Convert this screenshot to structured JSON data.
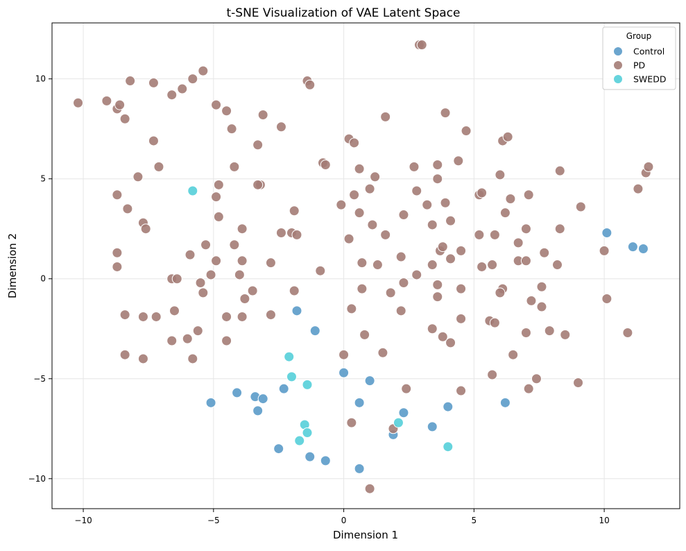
{
  "chart_data": {
    "type": "scatter",
    "title": "t-SNE Visualization of VAE Latent Space",
    "xlabel": "Dimension 1",
    "ylabel": "Dimension 2",
    "xlim": [
      -11.2,
      12.9
    ],
    "ylim": [
      -11.5,
      12.8
    ],
    "xticks": [
      -10,
      -5,
      0,
      5,
      10
    ],
    "yticks": [
      -10,
      -5,
      0,
      5,
      10
    ],
    "xtick_labels": [
      "−10",
      "−5",
      "0",
      "5",
      "10"
    ],
    "ytick_labels": [
      "−10",
      "−5",
      "0",
      "5",
      "10"
    ],
    "grid": true,
    "legend": {
      "title": "Group",
      "placement": "top-right"
    },
    "series": [
      {
        "name": "Control",
        "color": "#5b9bc9",
        "points": [
          [
            -5.1,
            -6.2
          ],
          [
            -4.1,
            -5.7
          ],
          [
            -3.4,
            -5.9
          ],
          [
            -3.3,
            -6.6
          ],
          [
            -3.1,
            -6.0
          ],
          [
            -2.5,
            -8.5
          ],
          [
            -2.3,
            -5.5
          ],
          [
            -1.8,
            -1.6
          ],
          [
            -1.3,
            -8.9
          ],
          [
            -1.1,
            -2.6
          ],
          [
            -0.7,
            -9.1
          ],
          [
            0.0,
            -4.7
          ],
          [
            0.6,
            -6.2
          ],
          [
            0.6,
            -9.5
          ],
          [
            1.0,
            -5.1
          ],
          [
            1.9,
            -7.8
          ],
          [
            2.3,
            -6.7
          ],
          [
            3.4,
            -7.4
          ],
          [
            4.0,
            -6.4
          ],
          [
            6.2,
            -6.2
          ],
          [
            10.1,
            2.3
          ],
          [
            11.1,
            1.6
          ],
          [
            11.5,
            1.5
          ]
        ]
      },
      {
        "name": "PD",
        "color": "#a47c75",
        "points": [
          [
            -10.2,
            8.8
          ],
          [
            -9.1,
            8.9
          ],
          [
            -8.7,
            8.5
          ],
          [
            -8.6,
            8.7
          ],
          [
            -8.4,
            8.0
          ],
          [
            -8.2,
            9.9
          ],
          [
            -7.3,
            9.8
          ],
          [
            -6.6,
            9.2
          ],
          [
            -6.2,
            9.5
          ],
          [
            -5.8,
            10.0
          ],
          [
            -5.4,
            10.4
          ],
          [
            -1.4,
            9.9
          ],
          [
            -1.3,
            9.7
          ],
          [
            -4.9,
            8.7
          ],
          [
            -4.5,
            8.4
          ],
          [
            -3.1,
            8.2
          ],
          [
            -4.3,
            7.5
          ],
          [
            -2.4,
            7.6
          ],
          [
            -7.3,
            6.9
          ],
          [
            -3.3,
            6.7
          ],
          [
            -7.1,
            5.6
          ],
          [
            -7.9,
            5.1
          ],
          [
            -4.2,
            5.6
          ],
          [
            -4.8,
            4.7
          ],
          [
            -3.2,
            4.7
          ],
          [
            -3.3,
            4.7
          ],
          [
            -8.7,
            4.2
          ],
          [
            -8.3,
            3.5
          ],
          [
            -4.9,
            4.1
          ],
          [
            -4.8,
            3.1
          ],
          [
            -7.7,
            2.8
          ],
          [
            -7.6,
            2.5
          ],
          [
            -3.9,
            2.5
          ],
          [
            -1.9,
            3.4
          ],
          [
            -2.4,
            2.3
          ],
          [
            -2.0,
            2.3
          ],
          [
            -1.8,
            2.2
          ],
          [
            -8.7,
            1.3
          ],
          [
            -8.7,
            0.6
          ],
          [
            -5.3,
            1.7
          ],
          [
            -4.2,
            1.7
          ],
          [
            -5.9,
            1.2
          ],
          [
            -4.9,
            0.9
          ],
          [
            -3.9,
            0.9
          ],
          [
            -5.1,
            0.2
          ],
          [
            -2.8,
            0.8
          ],
          [
            -6.6,
            0.0
          ],
          [
            -6.4,
            0.0
          ],
          [
            -5.5,
            -0.2
          ],
          [
            -4.0,
            0.2
          ],
          [
            -5.4,
            -0.7
          ],
          [
            -3.5,
            -0.6
          ],
          [
            -1.9,
            -0.6
          ],
          [
            -3.8,
            -1.0
          ],
          [
            -0.9,
            0.4
          ],
          [
            -8.4,
            -1.8
          ],
          [
            -7.7,
            -1.9
          ],
          [
            -7.2,
            -1.9
          ],
          [
            -6.5,
            -1.6
          ],
          [
            -4.5,
            -1.9
          ],
          [
            -3.9,
            -1.9
          ],
          [
            -2.8,
            -1.8
          ],
          [
            -6.6,
            -3.1
          ],
          [
            -6.0,
            -3.0
          ],
          [
            -5.6,
            -2.6
          ],
          [
            -4.5,
            -3.1
          ],
          [
            -8.4,
            -3.8
          ],
          [
            -7.7,
            -4.0
          ],
          [
            -5.8,
            -4.0
          ],
          [
            -0.8,
            5.8
          ],
          [
            -0.7,
            5.7
          ],
          [
            0.2,
            7.0
          ],
          [
            0.4,
            6.8
          ],
          [
            0.6,
            5.5
          ],
          [
            1.2,
            5.1
          ],
          [
            0.4,
            4.2
          ],
          [
            1.0,
            4.5
          ],
          [
            1.6,
            8.1
          ],
          [
            -0.1,
            3.7
          ],
          [
            0.6,
            3.3
          ],
          [
            1.1,
            2.7
          ],
          [
            0.2,
            2.0
          ],
          [
            1.6,
            2.2
          ],
          [
            0.7,
            0.8
          ],
          [
            1.3,
            0.7
          ],
          [
            0.7,
            -0.5
          ],
          [
            0.3,
            -1.5
          ],
          [
            0.8,
            -2.8
          ],
          [
            0.0,
            -3.8
          ],
          [
            1.5,
            -3.7
          ],
          [
            1.8,
            -0.7
          ],
          [
            2.2,
            -1.6
          ],
          [
            2.2,
            1.1
          ],
          [
            2.3,
            -0.2
          ],
          [
            2.4,
            -5.5
          ],
          [
            0.3,
            -7.2
          ],
          [
            1.9,
            -7.5
          ],
          [
            2.9,
            11.7
          ],
          [
            3.0,
            11.7
          ],
          [
            4.7,
            7.4
          ],
          [
            3.9,
            8.3
          ],
          [
            2.7,
            5.6
          ],
          [
            3.6,
            5.7
          ],
          [
            3.6,
            5.0
          ],
          [
            4.4,
            5.9
          ],
          [
            2.8,
            4.4
          ],
          [
            3.9,
            3.8
          ],
          [
            2.3,
            3.2
          ],
          [
            3.2,
            3.7
          ],
          [
            3.4,
            2.7
          ],
          [
            4.1,
            2.9
          ],
          [
            3.7,
            1.4
          ],
          [
            3.8,
            1.6
          ],
          [
            4.5,
            1.4
          ],
          [
            4.1,
            1.0
          ],
          [
            2.8,
            0.2
          ],
          [
            3.4,
            0.7
          ],
          [
            3.6,
            -0.3
          ],
          [
            4.5,
            -0.5
          ],
          [
            3.6,
            -0.9
          ],
          [
            3.4,
            -2.5
          ],
          [
            3.8,
            -2.9
          ],
          [
            4.1,
            -3.2
          ],
          [
            4.5,
            -2.0
          ],
          [
            4.5,
            -5.6
          ],
          [
            1.0,
            -10.5
          ],
          [
            6.1,
            6.9
          ],
          [
            6.3,
            7.1
          ],
          [
            5.2,
            4.2
          ],
          [
            5.3,
            4.3
          ],
          [
            6.0,
            5.2
          ],
          [
            6.4,
            4.0
          ],
          [
            6.2,
            3.3
          ],
          [
            7.1,
            4.2
          ],
          [
            8.3,
            5.4
          ],
          [
            9.1,
            3.6
          ],
          [
            5.2,
            2.2
          ],
          [
            5.8,
            2.2
          ],
          [
            7.0,
            2.5
          ],
          [
            8.3,
            2.5
          ],
          [
            6.7,
            1.8
          ],
          [
            5.3,
            0.6
          ],
          [
            5.7,
            0.7
          ],
          [
            6.7,
            0.9
          ],
          [
            7.0,
            0.9
          ],
          [
            7.7,
            1.3
          ],
          [
            8.2,
            0.7
          ],
          [
            6.1,
            -0.5
          ],
          [
            6.0,
            -0.7
          ],
          [
            7.6,
            -0.4
          ],
          [
            5.6,
            -2.1
          ],
          [
            5.8,
            -2.2
          ],
          [
            7.2,
            -1.1
          ],
          [
            7.6,
            -1.4
          ],
          [
            7.0,
            -2.7
          ],
          [
            7.9,
            -2.6
          ],
          [
            8.5,
            -2.8
          ],
          [
            6.5,
            -3.8
          ],
          [
            5.7,
            -4.8
          ],
          [
            7.4,
            -5.0
          ],
          [
            7.1,
            -5.5
          ],
          [
            9.0,
            -5.2
          ],
          [
            10.0,
            1.4
          ],
          [
            10.1,
            -1.0
          ],
          [
            10.9,
            -2.7
          ],
          [
            11.3,
            4.5
          ],
          [
            11.6,
            5.3
          ],
          [
            11.7,
            5.6
          ]
        ]
      },
      {
        "name": "SWEDD",
        "color": "#55cfd9",
        "points": [
          [
            -5.8,
            4.4
          ],
          [
            -2.1,
            -3.9
          ],
          [
            -2.0,
            -4.9
          ],
          [
            -1.4,
            -5.3
          ],
          [
            -1.5,
            -7.3
          ],
          [
            -1.4,
            -7.7
          ],
          [
            -1.7,
            -8.1
          ],
          [
            2.1,
            -7.2
          ],
          [
            4.0,
            -8.4
          ]
        ]
      }
    ]
  }
}
